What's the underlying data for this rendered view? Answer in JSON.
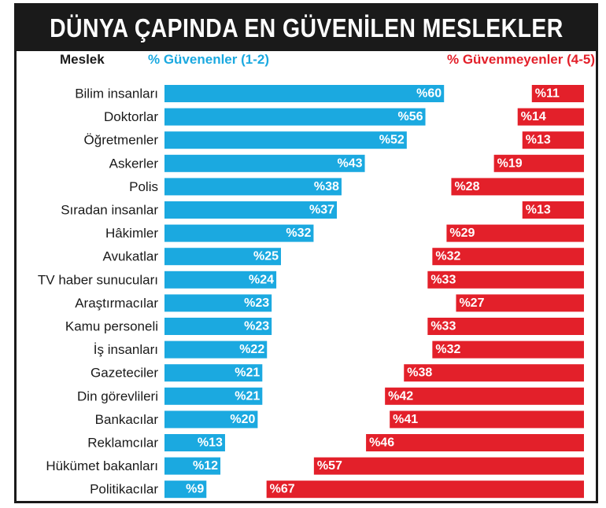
{
  "title": "DÜNYA ÇAPINDA EN GÜVENİLEN MESLEKLER",
  "headers": {
    "category": "Meslek",
    "trust": "% Güvenenler (1-2)",
    "distrust": "% Güvenmeyenler (4-5)"
  },
  "colors": {
    "trust": "#1ba9e0",
    "distrust": "#e3202a",
    "title_bg": "#1a1a1a",
    "title_fg": "#ffffff"
  },
  "chart_data": {
    "type": "bar",
    "title": "DÜNYA ÇAPINDA EN GÜVENİLEN MESLEKLER",
    "xlabel": "",
    "ylabel": "Meslek",
    "ylim": [
      0,
      70
    ],
    "categories": [
      "Bilim insanları",
      "Doktorlar",
      "Öğretmenler",
      "Askerler",
      "Polis",
      "Sıradan insanlar",
      "Hâkimler",
      "Avukatlar",
      "TV haber sunucuları",
      "Araştırmacılar",
      "Kamu personeli",
      "İş insanları",
      "Gazeteciler",
      "Din görevlileri",
      "Bankacılar",
      "Reklamcılar",
      "Hükümet bakanları",
      "Politikacılar"
    ],
    "series": [
      {
        "name": "% Güvenenler (1-2)",
        "values": [
          60,
          56,
          52,
          43,
          38,
          37,
          32,
          25,
          24,
          23,
          23,
          22,
          21,
          21,
          20,
          13,
          12,
          9
        ],
        "labels": [
          "%60",
          "%56",
          "%52",
          "%43",
          "%38",
          "%37",
          "%32",
          "%25",
          "%24",
          "%23",
          "%23",
          "%22",
          "%21",
          "%21",
          "%20",
          "%13",
          "%12",
          "%9"
        ]
      },
      {
        "name": "% Güvenmeyenler (4-5)",
        "values": [
          11,
          14,
          13,
          19,
          28,
          13,
          29,
          32,
          33,
          27,
          33,
          32,
          38,
          42,
          41,
          46,
          57,
          67
        ],
        "labels": [
          "%11",
          "%14",
          "%13",
          "%19",
          "%28",
          "%13",
          "%29",
          "%32",
          "%33",
          "%27",
          "%33",
          "%32",
          "%38",
          "%42",
          "%41",
          "%46",
          "%57",
          "%67"
        ]
      }
    ]
  }
}
